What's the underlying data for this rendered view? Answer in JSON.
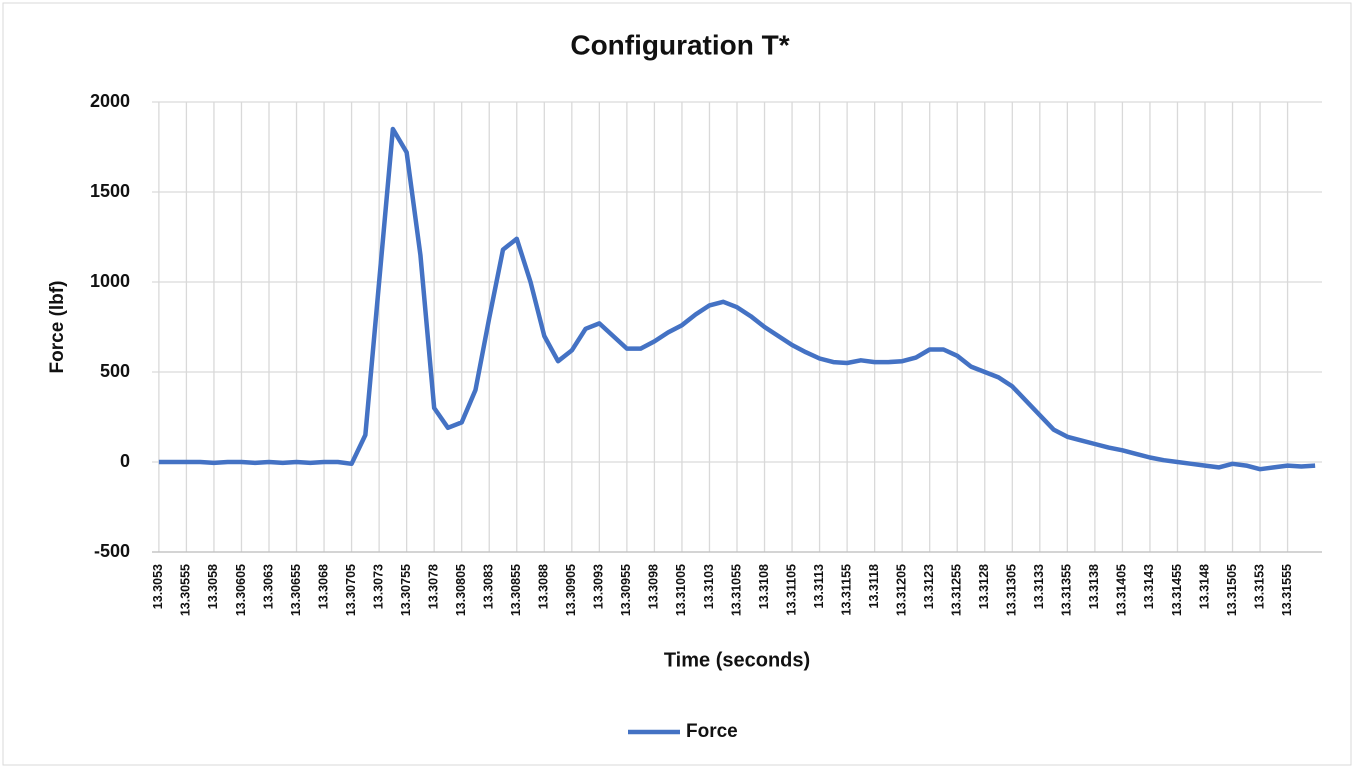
{
  "chart_data": {
    "type": "line",
    "title": "Configuration T*",
    "x_label": "Time (seconds)",
    "y_label": "Force (lbf)",
    "categories": [
      "13.3053",
      null,
      "13.30555",
      null,
      "13.3058",
      null,
      "13.30605",
      null,
      "13.3063",
      null,
      "13.30655",
      null,
      "13.3068",
      null,
      "13.30705",
      null,
      "13.3073",
      null,
      "13.30755",
      null,
      "13.3078",
      null,
      "13.30805",
      null,
      "13.3083",
      null,
      "13.30855",
      null,
      "13.3088",
      null,
      "13.30905",
      null,
      "13.3093",
      null,
      "13.30955",
      null,
      "13.3098",
      null,
      "13.31005",
      null,
      "13.3103",
      null,
      "13.31055",
      null,
      "13.3108",
      null,
      "13.31105",
      null,
      "13.3113",
      null,
      "13.31155",
      null,
      "13.3118",
      null,
      "13.31205",
      null,
      "13.3123",
      null,
      "13.31255",
      null,
      "13.3128",
      null,
      "13.31305",
      null,
      "13.3133",
      null,
      "13.31355",
      null,
      "13.3138",
      null,
      "13.31405",
      null,
      "13.3143",
      null,
      "13.31455",
      null,
      "13.3148",
      null,
      "13.31505",
      null,
      "13.3153",
      null,
      "13.31555",
      null,
      null
    ],
    "series": [
      {
        "name": "Force",
        "color": "#4472c4",
        "values": [
          0,
          0,
          0,
          0,
          -5,
          0,
          0,
          -5,
          0,
          -5,
          0,
          -5,
          0,
          0,
          -10,
          150,
          1000,
          1850,
          1720,
          1150,
          300,
          190,
          220,
          400,
          800,
          1180,
          1240,
          1000,
          700,
          560,
          620,
          740,
          770,
          700,
          630,
          630,
          670,
          720,
          760,
          820,
          870,
          890,
          860,
          810,
          750,
          700,
          650,
          610,
          575,
          555,
          550,
          565,
          555,
          555,
          560,
          580,
          625,
          625,
          590,
          530,
          500,
          470,
          420,
          340,
          260,
          180,
          140,
          120,
          100,
          80,
          65,
          45,
          25,
          10,
          0,
          -10,
          -20,
          -30,
          -10,
          -20,
          -40,
          -30,
          -20,
          -25,
          -20
        ]
      }
    ],
    "ylim": [
      -500,
      2000
    ],
    "yticks": [
      -500,
      0,
      500,
      1000,
      1500,
      2000
    ],
    "grid": true,
    "legend": "bottom"
  }
}
